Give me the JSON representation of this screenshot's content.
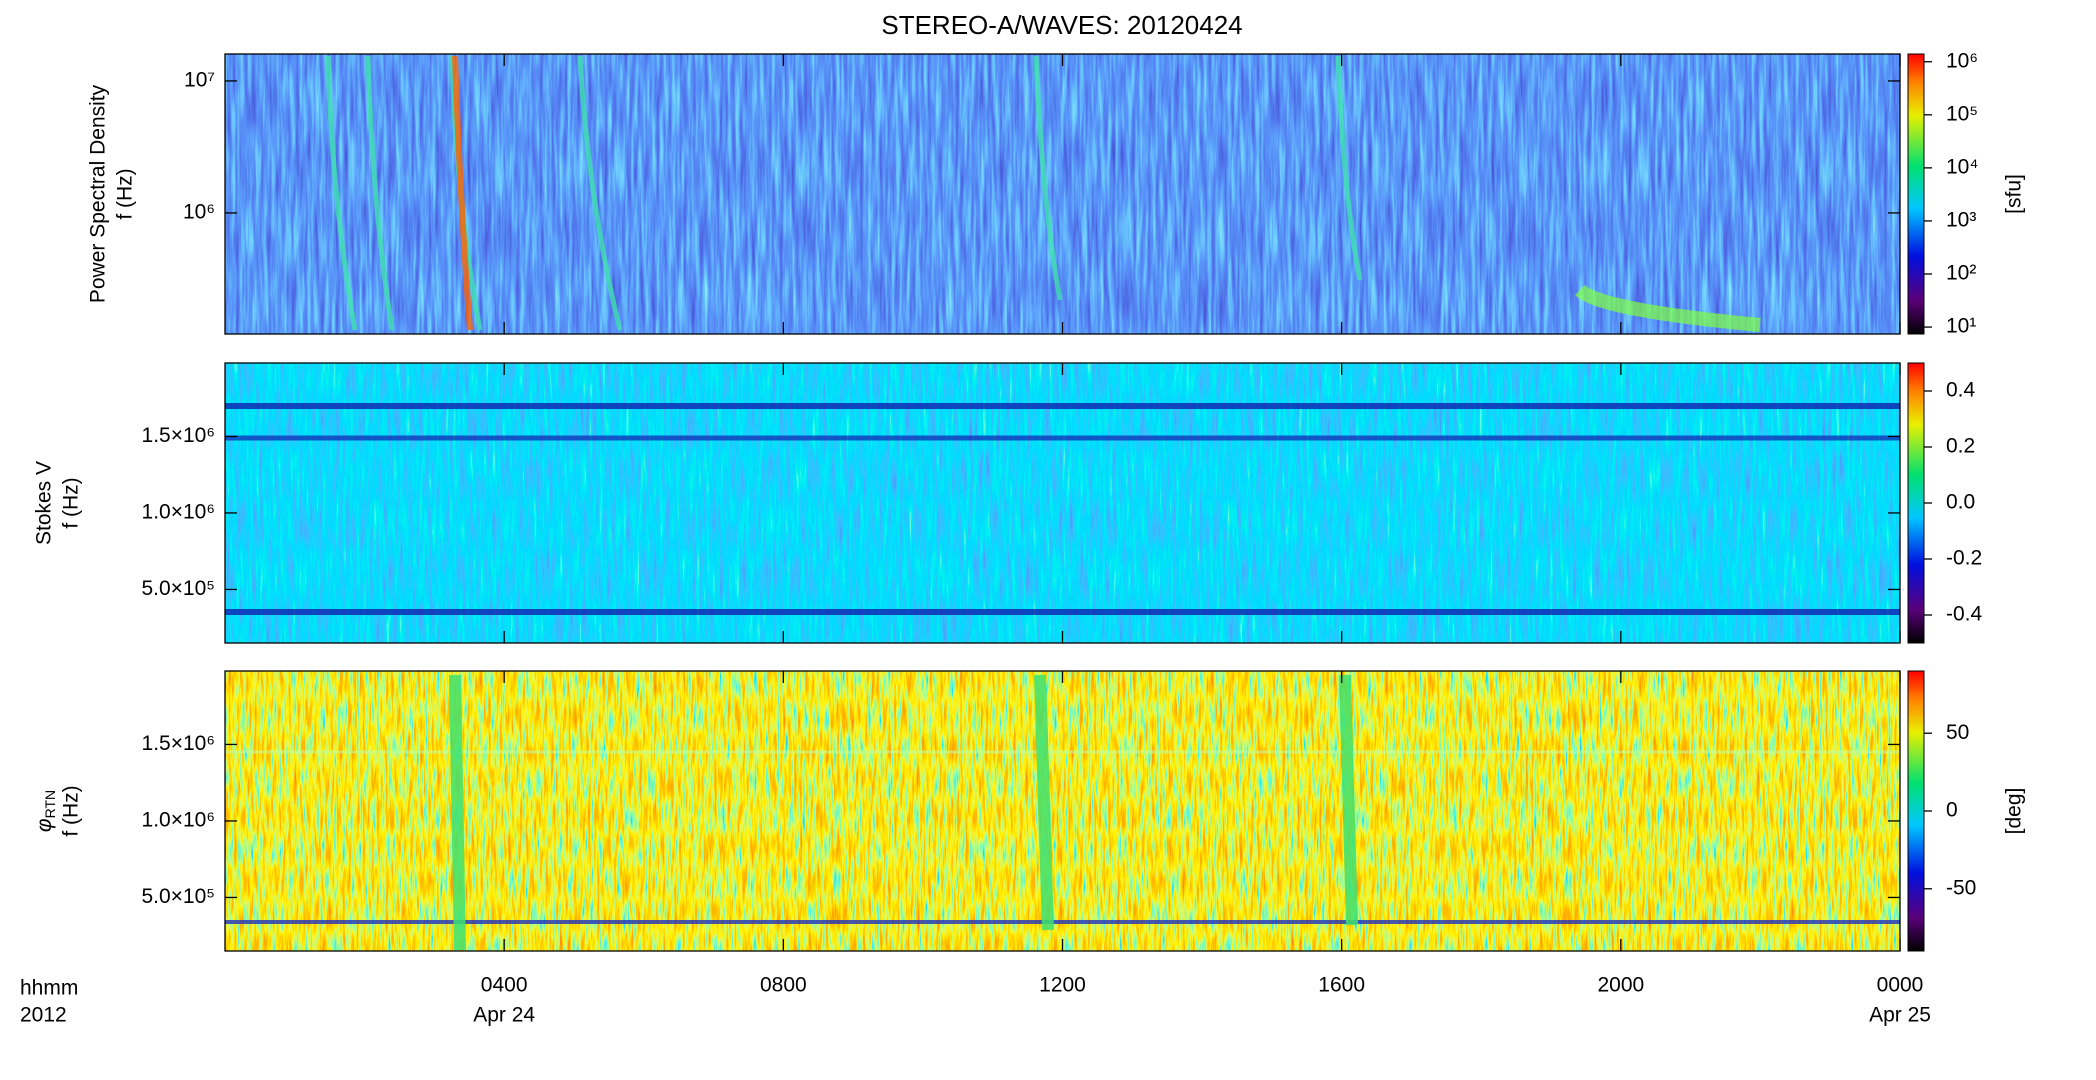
{
  "chart_data": [
    {
      "type": "heatmap",
      "title": "STEREO-A/WAVES: 20120424",
      "ylabel": [
        "Power Spectral Density",
        "f (Hz)"
      ],
      "yscale": "log",
      "ylim": [
        121000,
        16000000
      ],
      "yticks": [
        {
          "value": 1000000,
          "label": "10⁶"
        },
        {
          "value": 10000000,
          "label": "10⁷"
        }
      ],
      "colorbar": {
        "scale": "log",
        "lim": [
          7.4,
          1400000
        ],
        "ticks": [
          {
            "value": 10,
            "label": "10¹"
          },
          {
            "value": 100,
            "label": "10²"
          },
          {
            "value": 1000,
            "label": "10³"
          },
          {
            "value": 10000,
            "label": "10⁴"
          },
          {
            "value": 100000,
            "label": "10⁵"
          },
          {
            "value": 1000000,
            "label": "10⁶"
          }
        ],
        "label": "[sfu]"
      }
    },
    {
      "type": "heatmap",
      "ylabel": [
        "Stokes V",
        "f (Hz)"
      ],
      "yscale": "linear",
      "ylim": [
        150000,
        1980000
      ],
      "yticks": [
        {
          "value": 500000,
          "label": "5.0×10⁵"
        },
        {
          "value": 1000000,
          "label": "1.0×10⁶"
        },
        {
          "value": 1500000,
          "label": "1.5×10⁶"
        }
      ],
      "colorbar": {
        "scale": "linear",
        "lim": [
          -0.5,
          0.5
        ],
        "ticks": [
          -0.4,
          -0.2,
          {
            "value": 0,
            "label": "0.0"
          },
          0.2,
          0.4
        ]
      }
    },
    {
      "type": "heatmap",
      "ylabel": [
        "φ",
        "RTN",
        "f (Hz)"
      ],
      "yscale": "linear",
      "ylim": [
        150000,
        1980000
      ],
      "yticks": [
        {
          "value": 500000,
          "label": "5.0×10⁵"
        },
        {
          "value": 1000000,
          "label": "1.0×10⁶"
        },
        {
          "value": 1500000,
          "label": "1.5×10⁶"
        }
      ],
      "colorbar": {
        "scale": "linear",
        "lim": [
          -90,
          90
        ],
        "ticks": [
          -50,
          0,
          50
        ],
        "label": "[deg]"
      },
      "xlim": [
        0,
        24
      ],
      "xticks": [
        {
          "value": 4,
          "label": "0400"
        },
        {
          "value": 8,
          "label": "0800"
        },
        {
          "value": 12,
          "label": "1200"
        },
        {
          "value": 16,
          "label": "1600"
        },
        {
          "value": 20,
          "label": "2000"
        },
        {
          "value": 24,
          "label": "0000"
        }
      ],
      "date_labels": [
        {
          "value": 4,
          "label": "Apr 24"
        },
        {
          "value": 24,
          "label": "Apr 25"
        }
      ],
      "xlabel": "hhmm",
      "year": "2012"
    }
  ]
}
